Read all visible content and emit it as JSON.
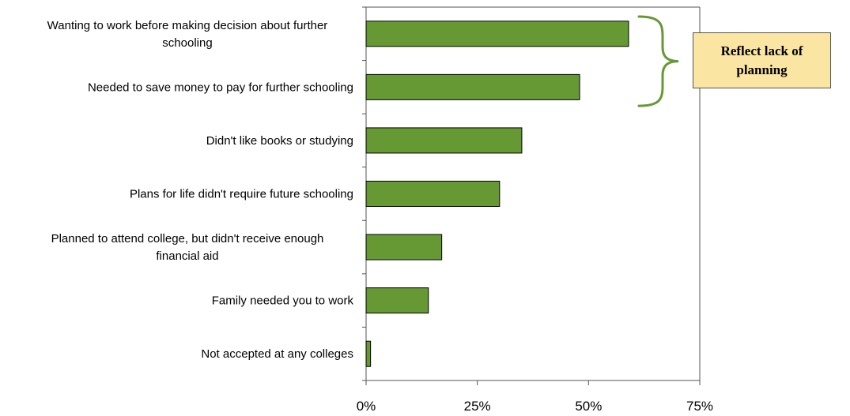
{
  "chart_data": {
    "type": "bar",
    "orientation": "horizontal",
    "categories": [
      [
        "Wanting to work before making decision about further",
        "schooling"
      ],
      [
        "Needed to save money to pay for further schooling"
      ],
      [
        "Didn't like books or studying"
      ],
      [
        "Plans for life didn't require future schooling"
      ],
      [
        "Planned to attend college, but didn't receive enough",
        "financial aid"
      ],
      [
        "Family needed you to work"
      ],
      [
        "Not accepted at any colleges"
      ]
    ],
    "values": [
      59,
      48,
      35,
      30,
      17,
      14,
      1
    ],
    "xlim": [
      0,
      75
    ],
    "xticks": [
      0,
      25,
      50,
      75
    ],
    "xtick_labels": [
      "0%",
      "25%",
      "50%",
      "75%"
    ],
    "title": "",
    "xlabel": "",
    "ylabel": "",
    "grid": false,
    "legend": "none",
    "annotation": {
      "text": "Reflect lack of planning",
      "brace_spans_categories": [
        0,
        1
      ],
      "placement": "top-right"
    }
  },
  "colors": {
    "bar_fill": "#669933",
    "bar_stroke": "#000000",
    "brace": "#669933",
    "callout_fill": "#fae5a3",
    "axis": "#555555"
  }
}
